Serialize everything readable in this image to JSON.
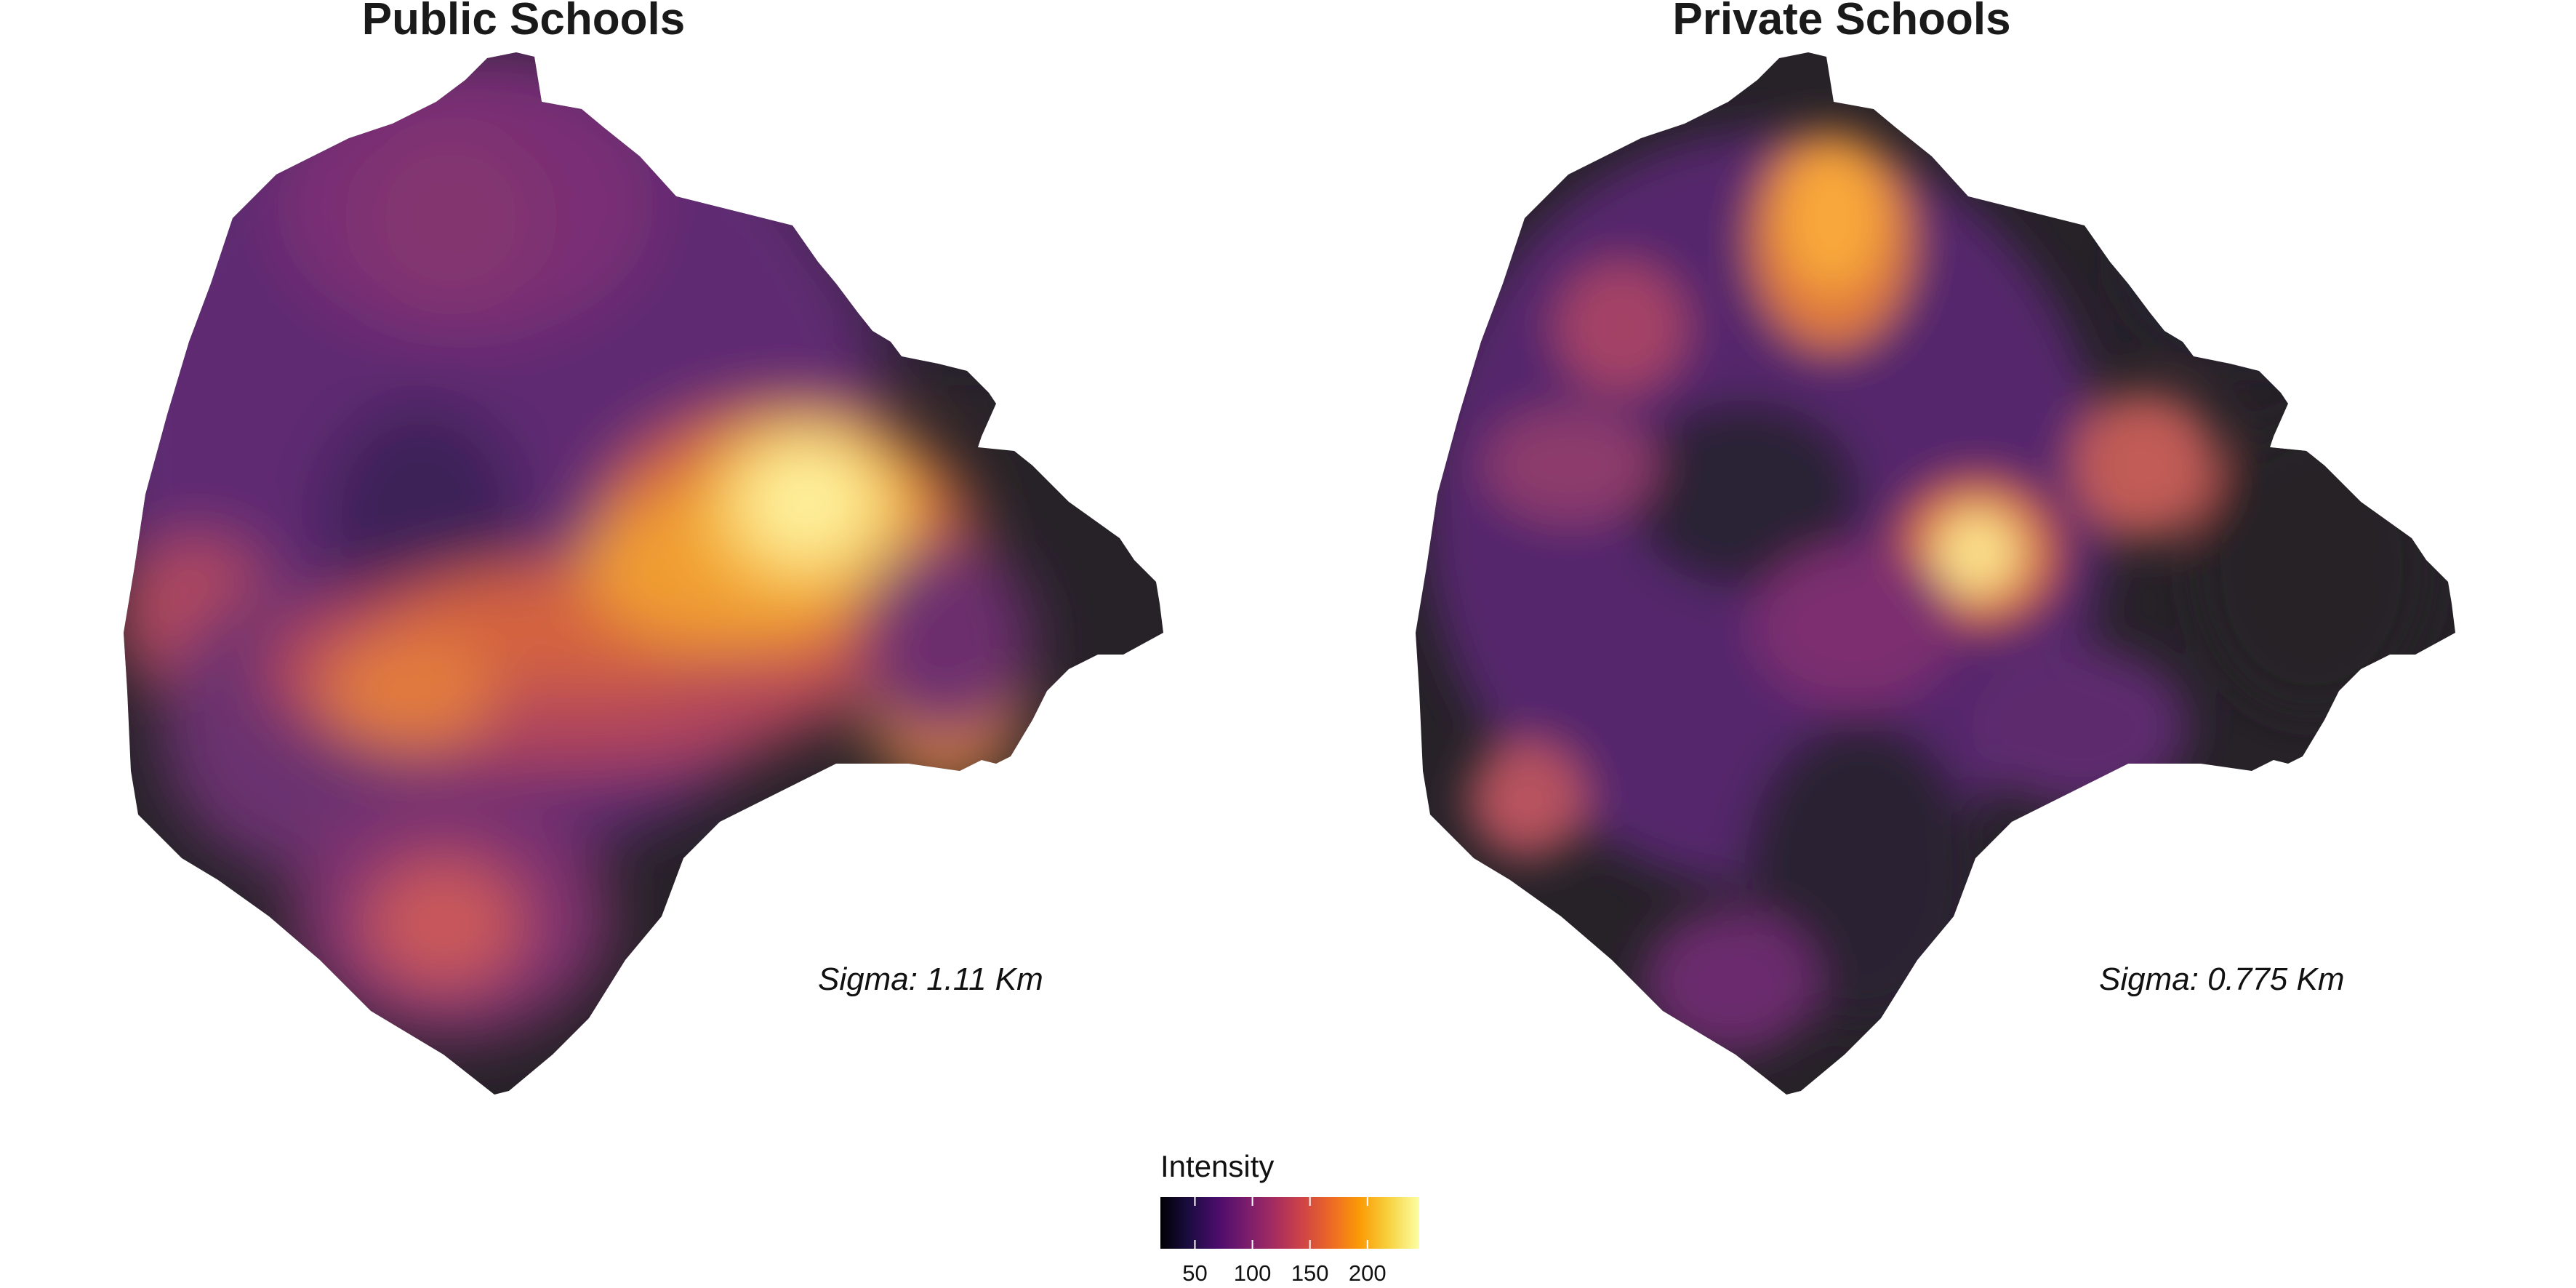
{
  "panels": [
    {
      "title": "Public Schools",
      "sigma_label": "Sigma: 1.11 Km",
      "bandwidth_km": 1.11
    },
    {
      "title": "Private Schools",
      "sigma_label": "Sigma: 0.775 Km",
      "bandwidth_km": 0.775
    }
  ],
  "legend": {
    "title": "Intensity",
    "ticks": [
      "50",
      "100",
      "150",
      "200"
    ],
    "tick_values": [
      50,
      100,
      150,
      200
    ],
    "range": [
      20,
      245
    ],
    "palette": [
      "#000004",
      "#1b0c41",
      "#4a0c6b",
      "#781c6d",
      "#a52c60",
      "#cf4446",
      "#ed6925",
      "#fb9b06",
      "#f7d13d",
      "#fcffa4"
    ]
  },
  "map_data": {
    "public_hotspots": [
      {
        "location": "east-center",
        "intensity": 245
      },
      {
        "location": "east-south",
        "intensity": 170
      },
      {
        "location": "center-south band",
        "intensity": 160
      },
      {
        "location": "south",
        "intensity": 135
      },
      {
        "location": "west",
        "intensity": 125
      }
    ],
    "private_hotspots": [
      {
        "location": "center-east",
        "intensity": 245
      },
      {
        "location": "north",
        "intensity": 190
      },
      {
        "location": "east",
        "intensity": 140
      },
      {
        "location": "southwest",
        "intensity": 130
      }
    ],
    "palette_name": "inferno"
  },
  "colors": {
    "outline_low": "#262228",
    "background": "#ffffff"
  }
}
